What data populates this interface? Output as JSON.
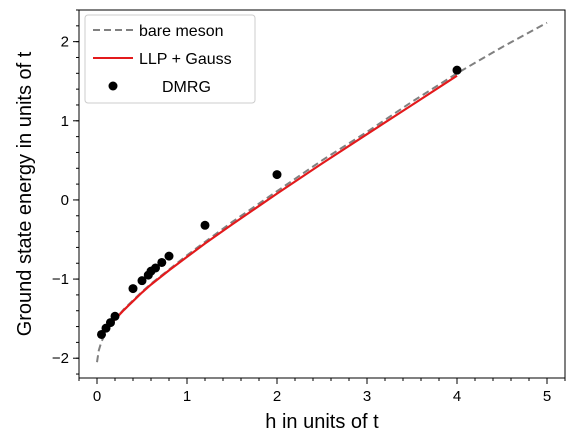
{
  "chart_data": {
    "type": "line",
    "xlabel": "h in units of t",
    "ylabel": "Ground state energy in units of t",
    "xlim": [
      -0.2,
      5.2
    ],
    "ylim": [
      -2.25,
      2.4
    ],
    "x_ticks": [
      {
        "value": 0,
        "label": "0"
      },
      {
        "value": 1,
        "label": "1"
      },
      {
        "value": 2,
        "label": "2"
      },
      {
        "value": 3,
        "label": "3"
      },
      {
        "value": 4,
        "label": "4"
      },
      {
        "value": 5,
        "label": "5"
      }
    ],
    "y_ticks": [
      {
        "value": -2,
        "label": "−2"
      },
      {
        "value": -1,
        "label": "−1"
      },
      {
        "value": 0,
        "label": "0"
      },
      {
        "value": 1,
        "label": "1"
      },
      {
        "value": 2,
        "label": "2"
      }
    ],
    "legend_position": "top-left",
    "series": [
      {
        "name": "bare meson",
        "style": "dashed",
        "color": "#808080",
        "x": [
          0.0,
          0.02,
          0.05,
          0.1,
          0.15,
          0.2,
          0.3,
          0.4,
          0.5,
          0.6,
          0.7,
          0.8,
          1.0,
          1.2,
          1.5,
          2.0,
          2.5,
          3.0,
          3.5,
          4.0,
          4.5,
          5.0
        ],
        "y": [
          -2.05,
          -1.9,
          -1.79,
          -1.67,
          -1.58,
          -1.51,
          -1.38,
          -1.27,
          -1.16,
          -1.06,
          -0.97,
          -0.88,
          -0.7,
          -0.53,
          -0.28,
          0.11,
          0.5,
          0.86,
          1.24,
          1.6,
          1.93,
          2.24
        ]
      },
      {
        "name": "LLP + Gauss",
        "style": "solid",
        "color": "#e31a1c",
        "x": [
          0.03,
          0.05,
          0.1,
          0.15,
          0.2,
          0.3,
          0.4,
          0.5,
          0.6,
          0.7,
          0.8,
          1.0,
          1.2,
          1.5,
          2.0,
          2.5,
          3.0,
          3.5,
          4.0
        ],
        "y": [
          -1.73,
          -1.7,
          -1.63,
          -1.57,
          -1.51,
          -1.39,
          -1.28,
          -1.17,
          -1.07,
          -0.98,
          -0.89,
          -0.72,
          -0.55,
          -0.31,
          0.08,
          0.46,
          0.83,
          1.2,
          1.57
        ]
      },
      {
        "name": "DMRG",
        "style": "markers",
        "color": "#000000",
        "x": [
          0.05,
          0.1,
          0.15,
          0.2,
          0.4,
          0.5,
          0.57,
          0.6,
          0.65,
          0.72,
          0.8,
          1.2,
          2.0,
          4.0
        ],
        "y": [
          -1.7,
          -1.62,
          -1.55,
          -1.47,
          -1.12,
          -1.02,
          -0.95,
          -0.9,
          -0.86,
          -0.79,
          -0.71,
          -0.32,
          0.32,
          1.64
        ]
      }
    ]
  }
}
